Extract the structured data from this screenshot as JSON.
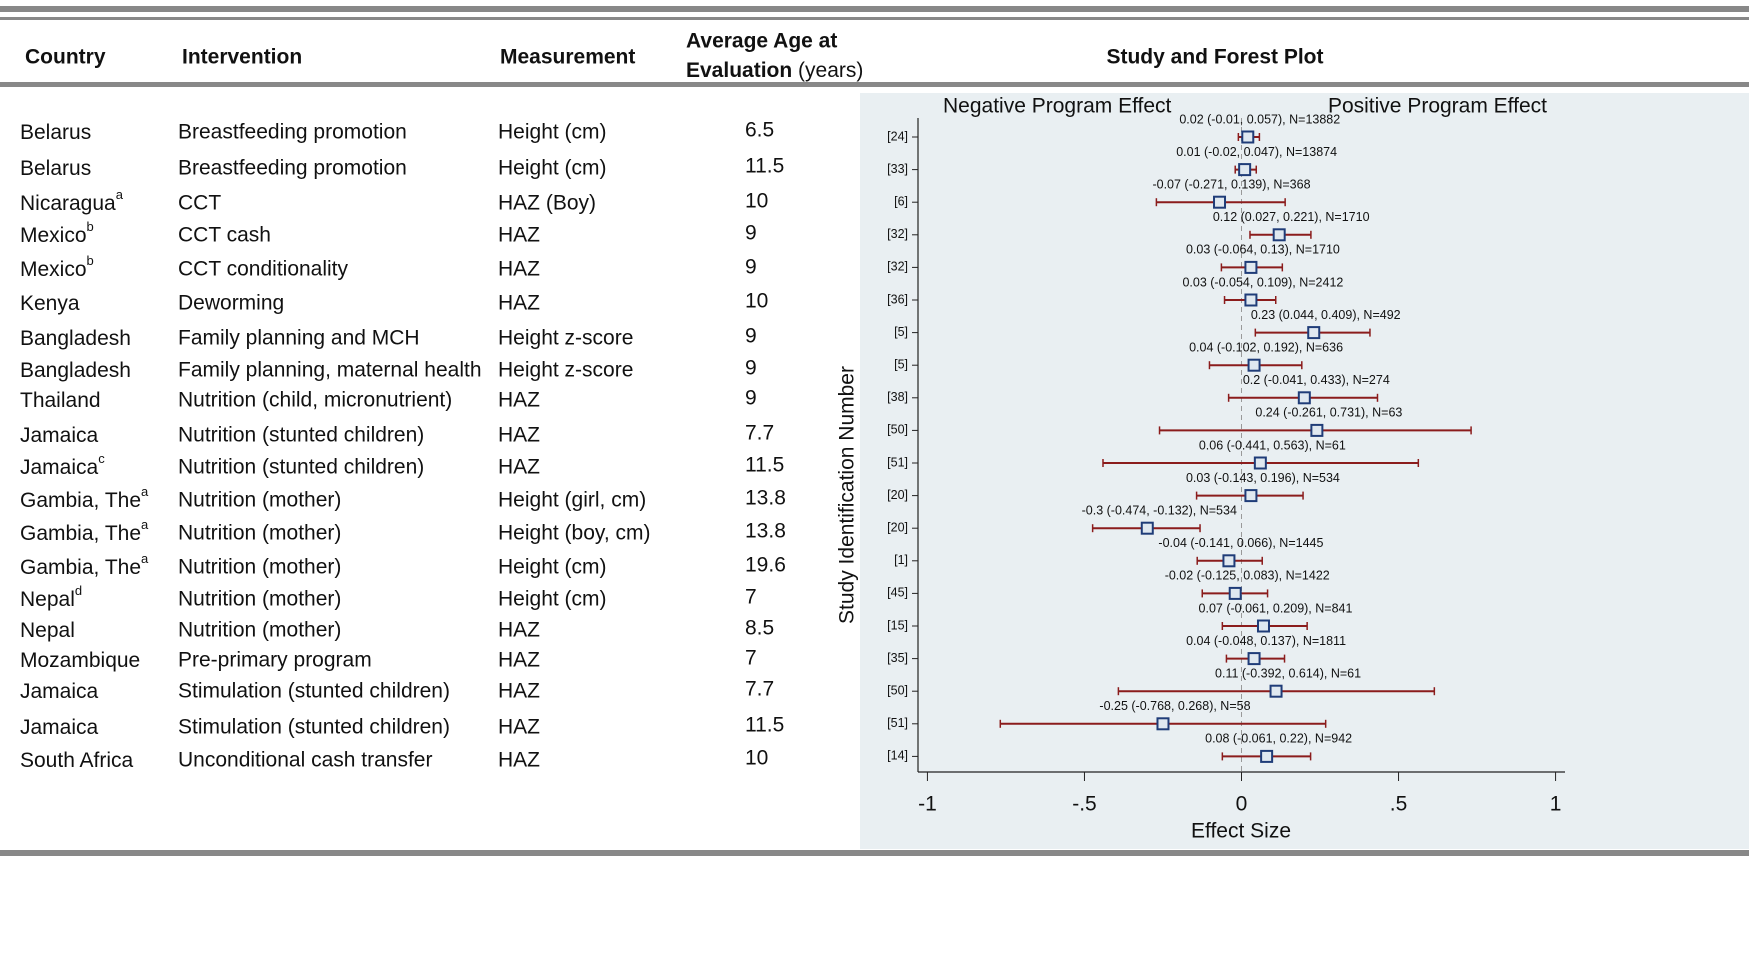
{
  "table": {
    "headers": [
      "Country",
      "Intervention",
      "Measurement"
    ],
    "age_header": {
      "line1": "Average Age at",
      "bold": "Evaluation",
      "unit": "(years)"
    },
    "rows": [
      {
        "country": "Belarus",
        "intervention": "Breastfeeding promotion",
        "measurement": "Height (cm)",
        "age": 6.5
      },
      {
        "country": "Belarus",
        "intervention": "Breastfeeding promotion",
        "measurement": "Height (cm)",
        "age": 11.5
      },
      {
        "country": "Nicaragua",
        "note": "a",
        "intervention": "CCT",
        "measurement": "HAZ (Boy)",
        "age": 10
      },
      {
        "country": "Mexico",
        "note": "b",
        "intervention": "CCT cash",
        "measurement": "HAZ",
        "age": 9
      },
      {
        "country": "Mexico",
        "note": "b",
        "intervention": "CCT conditionality",
        "measurement": "HAZ",
        "age": 9
      },
      {
        "country": "Kenya",
        "intervention": "Deworming",
        "measurement": "HAZ",
        "age": 10
      },
      {
        "country": "Bangladesh",
        "intervention": "Family planning and MCH",
        "measurement": "Height z-score",
        "age": 9
      },
      {
        "country": "Bangladesh",
        "intervention": "Family planning, maternal health",
        "measurement": "Height z-score",
        "age": 9
      },
      {
        "country": "Thailand",
        "intervention": "Nutrition (child, micronutrient)",
        "measurement": "HAZ",
        "age": 9
      },
      {
        "country": "Jamaica",
        "intervention": "Nutrition (stunted children)",
        "measurement": "HAZ",
        "age": 7.7
      },
      {
        "country": "Jamaica",
        "note": "c",
        "intervention": "Nutrition (stunted children)",
        "measurement": "HAZ",
        "age": 11.5
      },
      {
        "country": "Gambia, The",
        "note": "a",
        "intervention": "Nutrition (mother)",
        "measurement": "Height (girl, cm)",
        "age": 13.8
      },
      {
        "country": "Gambia, The",
        "note": "a",
        "intervention": "Nutrition (mother)",
        "measurement": "Height (boy, cm)",
        "age": 13.8
      },
      {
        "country": "Gambia, The",
        "note": "a",
        "intervention": "Nutrition (mother)",
        "measurement": "Height (cm)",
        "age": 19.6
      },
      {
        "country": "Nepal",
        "note": "d",
        "intervention": "Nutrition (mother)",
        "measurement": "Height (cm)",
        "age": 7
      },
      {
        "country": "Nepal",
        "intervention": "Nutrition (mother)",
        "measurement": "HAZ",
        "age": 8.5
      },
      {
        "country": "Mozambique",
        "intervention": "Pre-primary program",
        "measurement": "HAZ",
        "age": 7
      },
      {
        "country": "Jamaica",
        "intervention": "Stimulation (stunted children)",
        "measurement": "HAZ",
        "age": 7.7
      },
      {
        "country": "Jamaica",
        "intervention": "Stimulation (stunted children)",
        "measurement": "HAZ",
        "age": 11.5
      },
      {
        "country": "South Africa",
        "intervention": "Unconditional cash transfer",
        "measurement": "HAZ",
        "age": 10
      }
    ]
  },
  "chart_data": {
    "type": "forest",
    "title": "Study and Forest Plot",
    "left_label": "Negative Program Effect",
    "right_label": "Positive Program Effect",
    "xlabel": "Effect Size",
    "ylabel": "Study Identification Number",
    "categories": [
      "[24]",
      "[33]",
      "[6]",
      "[32]",
      "[32]",
      "[36]",
      "[5]",
      "[5]",
      "[38]",
      "[50]",
      "[51]",
      "[20]",
      "[20]",
      "[1]",
      "[45]",
      "[15]",
      "[35]",
      "[50]",
      "[51]",
      "[14]"
    ],
    "values": [
      0.02,
      0.01,
      -0.07,
      0.12,
      0.03,
      0.03,
      0.23,
      0.04,
      0.2,
      0.24,
      0.06,
      0.03,
      -0.3,
      -0.04,
      -0.02,
      0.07,
      0.04,
      0.11,
      -0.25,
      0.08
    ],
    "lower": [
      -0.01,
      -0.02,
      -0.271,
      0.027,
      -0.064,
      -0.054,
      0.044,
      -0.102,
      -0.041,
      -0.261,
      -0.441,
      -0.143,
      -0.474,
      -0.141,
      -0.125,
      -0.061,
      -0.048,
      -0.392,
      -0.768,
      -0.061
    ],
    "upper": [
      0.057,
      0.047,
      0.139,
      0.221,
      0.13,
      0.109,
      0.409,
      0.192,
      0.433,
      0.731,
      0.563,
      0.196,
      -0.132,
      0.066,
      0.083,
      0.209,
      0.137,
      0.614,
      0.268,
      0.22
    ],
    "value_labels": [
      "0.02  (-0.01, 0.057),  N=13882",
      "0.01  (-0.02, 0.047),  N=13874",
      "-0.07  (-0.271, 0.139),  N=368",
      "0.12  (0.027, 0.221),  N=1710",
      "0.03  (-0.064, 0.13),  N=1710",
      "0.03  (-0.054, 0.109),  N=2412",
      "0.23  (0.044, 0.409),  N=492",
      "0.04  (-0.102, 0.192),  N=636",
      "0.2  (-0.041, 0.433),  N=274",
      "0.24  (-0.261, 0.731),  N=63",
      "0.06  (-0.441, 0.563),  N=61",
      "0.03  (-0.143, 0.196),  N=534",
      "-0.3  (-0.474, -0.132),  N=534",
      "-0.04  (-0.141, 0.066),  N=1445",
      "-0.02  (-0.125, 0.083),  N=1422",
      "0.07  (-0.061, 0.209),  N=841",
      "0.04  (-0.048, 0.137),  N=1811",
      "0.11  (-0.392, 0.614),  N=61",
      "-0.25  (-0.768, 0.268),  N=58",
      "0.08  (-0.061, 0.22),  N=942"
    ],
    "xlim": [
      -1.03,
      1.03
    ],
    "xticks": [
      -1,
      {
        "value": -0.5,
        "label": "-.5"
      },
      0,
      {
        "value": 0.5,
        "label": ".5"
      },
      1
    ],
    "ci_color": "#8b1c1c",
    "marker_color": "#1f3c78"
  }
}
